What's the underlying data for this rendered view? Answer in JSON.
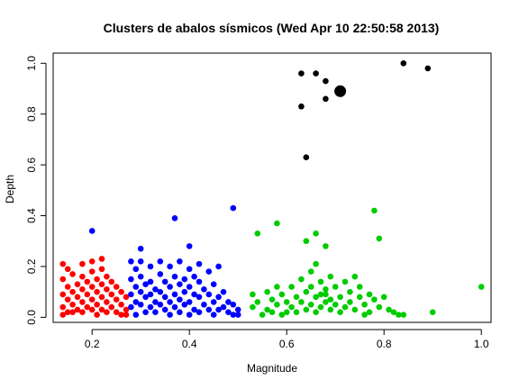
{
  "chart_data": {
    "type": "scatter",
    "title": "Clusters de abalos sísmicos (Wed Apr 10 22:50:58 2013)",
    "xlabel": "Magnitude",
    "ylabel": "Depth",
    "xlim": [
      0.12,
      1.02
    ],
    "ylim": [
      -0.02,
      1.04
    ],
    "x_ticks": [
      0.2,
      0.4,
      0.6,
      0.8,
      1.0
    ],
    "x_tick_labels": [
      "0.2",
      "0.4",
      "0.6",
      "0.8",
      "1.0"
    ],
    "y_ticks": [
      0.0,
      0.2,
      0.4,
      0.6,
      0.8,
      1.0
    ],
    "y_tick_labels": [
      "0.0",
      "0.2",
      "0.4",
      "0.6",
      "0.8",
      "1.0"
    ],
    "grid": false,
    "series": [
      {
        "name": "cluster-red",
        "color": "#ff0000",
        "points": [
          [
            0.14,
            0.21
          ],
          [
            0.15,
            0.19
          ],
          [
            0.14,
            0.15
          ],
          [
            0.15,
            0.12
          ],
          [
            0.14,
            0.09
          ],
          [
            0.15,
            0.07
          ],
          [
            0.14,
            0.04
          ],
          [
            0.15,
            0.02
          ],
          [
            0.14,
            0.01
          ],
          [
            0.16,
            0.17
          ],
          [
            0.16,
            0.1
          ],
          [
            0.16,
            0.05
          ],
          [
            0.16,
            0.02
          ],
          [
            0.17,
            0.13
          ],
          [
            0.17,
            0.08
          ],
          [
            0.17,
            0.03
          ],
          [
            0.18,
            0.21
          ],
          [
            0.18,
            0.16
          ],
          [
            0.18,
            0.11
          ],
          [
            0.18,
            0.06
          ],
          [
            0.18,
            0.02
          ],
          [
            0.19,
            0.14
          ],
          [
            0.19,
            0.09
          ],
          [
            0.19,
            0.04
          ],
          [
            0.2,
            0.22
          ],
          [
            0.2,
            0.18
          ],
          [
            0.2,
            0.12
          ],
          [
            0.2,
            0.07
          ],
          [
            0.2,
            0.03
          ],
          [
            0.21,
            0.15
          ],
          [
            0.21,
            0.1
          ],
          [
            0.21,
            0.05
          ],
          [
            0.21,
            0.01
          ],
          [
            0.22,
            0.23
          ],
          [
            0.22,
            0.19
          ],
          [
            0.22,
            0.13
          ],
          [
            0.22,
            0.08
          ],
          [
            0.22,
            0.03
          ],
          [
            0.23,
            0.16
          ],
          [
            0.23,
            0.11
          ],
          [
            0.23,
            0.06
          ],
          [
            0.23,
            0.02
          ],
          [
            0.24,
            0.14
          ],
          [
            0.24,
            0.09
          ],
          [
            0.24,
            0.04
          ],
          [
            0.25,
            0.12
          ],
          [
            0.25,
            0.07
          ],
          [
            0.25,
            0.02
          ],
          [
            0.26,
            0.1
          ],
          [
            0.26,
            0.05
          ],
          [
            0.26,
            0.01
          ],
          [
            0.27,
            0.08
          ],
          [
            0.27,
            0.03
          ],
          [
            0.27,
            0.01
          ]
        ]
      },
      {
        "name": "cluster-blue",
        "color": "#0000ff",
        "points": [
          [
            0.2,
            0.34
          ],
          [
            0.37,
            0.39
          ],
          [
            0.49,
            0.43
          ],
          [
            0.4,
            0.28
          ],
          [
            0.3,
            0.27
          ],
          [
            0.28,
            0.22
          ],
          [
            0.28,
            0.15
          ],
          [
            0.28,
            0.09
          ],
          [
            0.28,
            0.04
          ],
          [
            0.29,
            0.19
          ],
          [
            0.29,
            0.12
          ],
          [
            0.29,
            0.06
          ],
          [
            0.29,
            0.01
          ],
          [
            0.3,
            0.22
          ],
          [
            0.3,
            0.16
          ],
          [
            0.3,
            0.1
          ],
          [
            0.3,
            0.05
          ],
          [
            0.31,
            0.13
          ],
          [
            0.31,
            0.08
          ],
          [
            0.31,
            0.02
          ],
          [
            0.32,
            0.2
          ],
          [
            0.32,
            0.14
          ],
          [
            0.32,
            0.09
          ],
          [
            0.32,
            0.04
          ],
          [
            0.33,
            0.11
          ],
          [
            0.33,
            0.06
          ],
          [
            0.33,
            0.02
          ],
          [
            0.34,
            0.22
          ],
          [
            0.34,
            0.17
          ],
          [
            0.34,
            0.1
          ],
          [
            0.34,
            0.05
          ],
          [
            0.35,
            0.14
          ],
          [
            0.35,
            0.08
          ],
          [
            0.35,
            0.03
          ],
          [
            0.36,
            0.2
          ],
          [
            0.36,
            0.12
          ],
          [
            0.36,
            0.06
          ],
          [
            0.36,
            0.01
          ],
          [
            0.37,
            0.16
          ],
          [
            0.37,
            0.09
          ],
          [
            0.37,
            0.04
          ],
          [
            0.38,
            0.22
          ],
          [
            0.38,
            0.13
          ],
          [
            0.38,
            0.07
          ],
          [
            0.38,
            0.02
          ],
          [
            0.39,
            0.15
          ],
          [
            0.39,
            0.1
          ],
          [
            0.39,
            0.05
          ],
          [
            0.4,
            0.19
          ],
          [
            0.4,
            0.12
          ],
          [
            0.4,
            0.06
          ],
          [
            0.4,
            0.01
          ],
          [
            0.41,
            0.16
          ],
          [
            0.41,
            0.09
          ],
          [
            0.41,
            0.03
          ],
          [
            0.42,
            0.21
          ],
          [
            0.42,
            0.14
          ],
          [
            0.42,
            0.08
          ],
          [
            0.42,
            0.02
          ],
          [
            0.43,
            0.11
          ],
          [
            0.43,
            0.05
          ],
          [
            0.44,
            0.18
          ],
          [
            0.44,
            0.09
          ],
          [
            0.44,
            0.03
          ],
          [
            0.45,
            0.13
          ],
          [
            0.45,
            0.06
          ],
          [
            0.45,
            0.01
          ],
          [
            0.46,
            0.2
          ],
          [
            0.46,
            0.08
          ],
          [
            0.46,
            0.03
          ],
          [
            0.47,
            0.1
          ],
          [
            0.47,
            0.04
          ],
          [
            0.48,
            0.06
          ],
          [
            0.48,
            0.02
          ],
          [
            0.49,
            0.05
          ],
          [
            0.49,
            0.01
          ],
          [
            0.5,
            0.03
          ],
          [
            0.5,
            0.01
          ]
        ]
      },
      {
        "name": "cluster-green",
        "color": "#00cc00",
        "points": [
          [
            0.54,
            0.33
          ],
          [
            0.58,
            0.37
          ],
          [
            0.66,
            0.33
          ],
          [
            0.64,
            0.3
          ],
          [
            0.68,
            0.28
          ],
          [
            0.78,
            0.42
          ],
          [
            0.79,
            0.31
          ],
          [
            1.0,
            0.12
          ],
          [
            0.9,
            0.02
          ],
          [
            0.53,
            0.09
          ],
          [
            0.53,
            0.04
          ],
          [
            0.54,
            0.06
          ],
          [
            0.55,
            0.01
          ],
          [
            0.56,
            0.1
          ],
          [
            0.56,
            0.03
          ],
          [
            0.57,
            0.07
          ],
          [
            0.57,
            0.02
          ],
          [
            0.58,
            0.12
          ],
          [
            0.58,
            0.05
          ],
          [
            0.59,
            0.09
          ],
          [
            0.59,
            0.01
          ],
          [
            0.6,
            0.06
          ],
          [
            0.6,
            0.02
          ],
          [
            0.61,
            0.12
          ],
          [
            0.61,
            0.04
          ],
          [
            0.62,
            0.08
          ],
          [
            0.62,
            0.02
          ],
          [
            0.63,
            0.15
          ],
          [
            0.63,
            0.06
          ],
          [
            0.64,
            0.1
          ],
          [
            0.64,
            0.03
          ],
          [
            0.65,
            0.18
          ],
          [
            0.65,
            0.12
          ],
          [
            0.65,
            0.05
          ],
          [
            0.66,
            0.21
          ],
          [
            0.66,
            0.08
          ],
          [
            0.66,
            0.02
          ],
          [
            0.67,
            0.14
          ],
          [
            0.67,
            0.09
          ],
          [
            0.67,
            0.04
          ],
          [
            0.68,
            0.11
          ],
          [
            0.68,
            0.06
          ],
          [
            0.68,
            0.09
          ],
          [
            0.69,
            0.16
          ],
          [
            0.69,
            0.07
          ],
          [
            0.69,
            0.03
          ],
          [
            0.7,
            0.12
          ],
          [
            0.7,
            0.05
          ],
          [
            0.71,
            0.08
          ],
          [
            0.71,
            0.02
          ],
          [
            0.72,
            0.14
          ],
          [
            0.72,
            0.04
          ],
          [
            0.73,
            0.1
          ],
          [
            0.73,
            0.06
          ],
          [
            0.74,
            0.16
          ],
          [
            0.74,
            0.03
          ],
          [
            0.75,
            0.08
          ],
          [
            0.75,
            0.12
          ],
          [
            0.76,
            0.05
          ],
          [
            0.76,
            0.01
          ],
          [
            0.77,
            0.09
          ],
          [
            0.77,
            0.02
          ],
          [
            0.78,
            0.07
          ],
          [
            0.79,
            0.04
          ],
          [
            0.8,
            0.08
          ],
          [
            0.81,
            0.03
          ],
          [
            0.82,
            0.02
          ],
          [
            0.83,
            0.01
          ],
          [
            0.84,
            0.01
          ]
        ]
      },
      {
        "name": "cluster-black",
        "color": "#000000",
        "points": [
          [
            0.63,
            0.96
          ],
          [
            0.66,
            0.96
          ],
          [
            0.68,
            0.93
          ],
          [
            0.63,
            0.83
          ],
          [
            0.68,
            0.86
          ],
          [
            0.64,
            0.63
          ],
          [
            0.84,
            1.0
          ],
          [
            0.89,
            0.98
          ]
        ]
      }
    ],
    "centroids": [
      {
        "cluster": "cluster-black",
        "x": 0.71,
        "y": 0.89,
        "color": "#000000"
      }
    ]
  }
}
